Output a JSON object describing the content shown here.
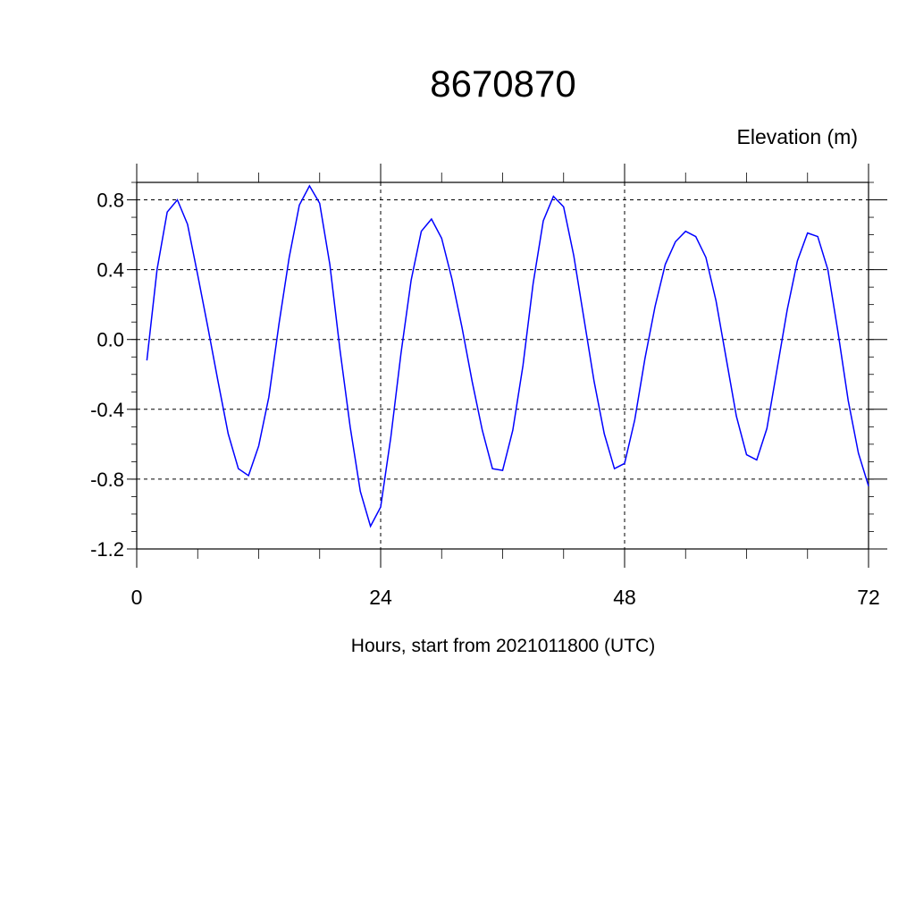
{
  "chart_data": {
    "type": "line",
    "title": "8670870",
    "ylabel": "Elevation (m)",
    "xlabel": "Hours, start from 2021011800 (UTC)",
    "xlim": [
      0,
      72
    ],
    "ylim": [
      -1.2,
      0.9
    ],
    "x_ticks": [
      0,
      24,
      48,
      72
    ],
    "x_tick_labels": [
      "0",
      "24",
      "48",
      "72"
    ],
    "y_ticks": [
      -1.2,
      -0.8,
      -0.4,
      0.0,
      0.4,
      0.8
    ],
    "y_tick_labels": [
      "-1.2",
      "-0.8",
      "-0.4",
      "0.0",
      "0.4",
      "0.8"
    ],
    "grid": true,
    "series": [
      {
        "color": "#0000ff",
        "x": [
          1,
          2,
          3,
          4,
          5,
          6,
          7,
          8,
          9,
          10,
          11,
          12,
          13,
          14,
          15,
          16,
          17,
          18,
          19,
          20,
          21,
          22,
          23,
          24,
          25,
          26,
          27,
          28,
          29,
          30,
          31,
          32,
          33,
          34,
          35,
          36,
          37,
          38,
          39,
          40,
          41,
          42,
          43,
          44,
          45,
          46,
          47,
          48,
          49,
          50,
          51,
          52,
          53,
          54,
          55,
          56,
          57,
          58,
          59,
          60,
          61,
          62,
          63,
          64,
          65,
          66,
          67,
          68,
          69,
          70,
          71,
          72
        ],
        "values": [
          -0.12,
          0.4,
          0.73,
          0.8,
          0.66,
          0.37,
          0.07,
          -0.24,
          -0.54,
          -0.74,
          -0.78,
          -0.61,
          -0.33,
          0.09,
          0.47,
          0.77,
          0.88,
          0.78,
          0.43,
          -0.06,
          -0.5,
          -0.87,
          -1.07,
          -0.96,
          -0.56,
          -0.08,
          0.34,
          0.62,
          0.69,
          0.58,
          0.35,
          0.07,
          -0.24,
          -0.52,
          -0.74,
          -0.75,
          -0.52,
          -0.15,
          0.32,
          0.68,
          0.82,
          0.76,
          0.48,
          0.12,
          -0.24,
          -0.54,
          -0.74,
          -0.71,
          -0.46,
          -0.11,
          0.19,
          0.43,
          0.56,
          0.62,
          0.59,
          0.47,
          0.22,
          -0.11,
          -0.44,
          -0.66,
          -0.69,
          -0.51,
          -0.17,
          0.17,
          0.45,
          0.61,
          0.59,
          0.4,
          0.04,
          -0.35,
          -0.65,
          -0.84
        ]
      }
    ]
  }
}
